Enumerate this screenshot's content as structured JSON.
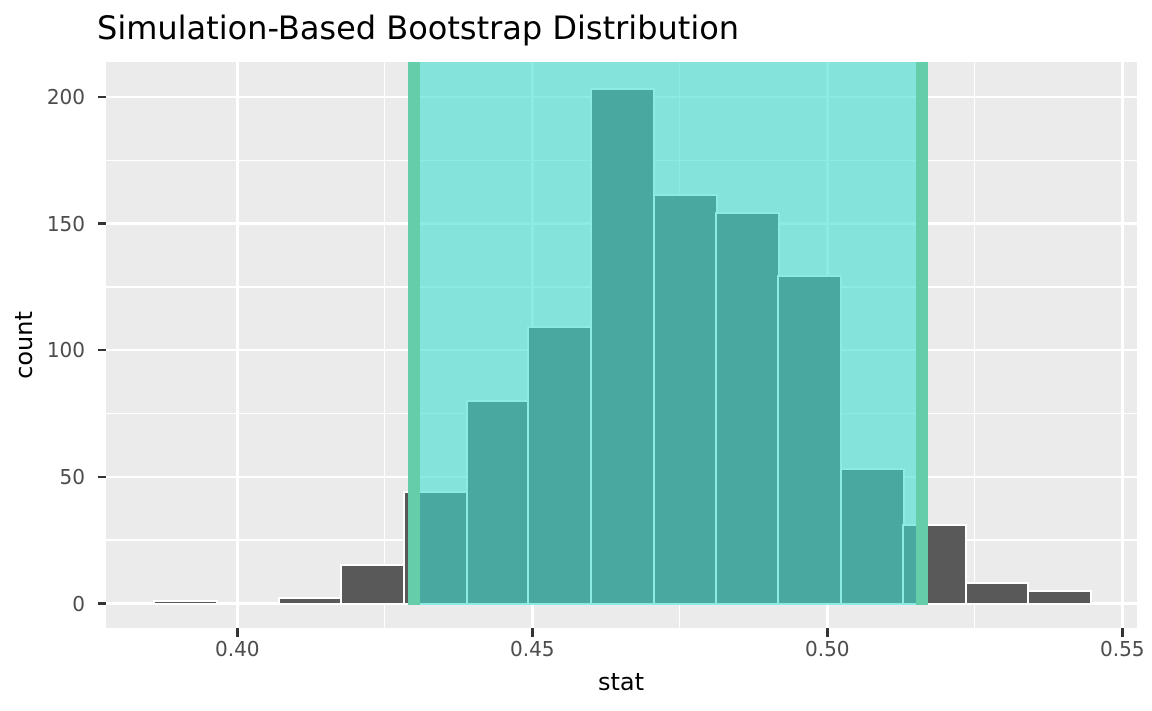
{
  "title": "Simulation-Based Bootstrap Distribution",
  "chart_data": {
    "type": "bar",
    "subtype": "histogram",
    "title": "Simulation-Based Bootstrap Distribution",
    "xlabel": "stat",
    "ylabel": "count",
    "x_ticks": [
      0.4,
      0.45,
      0.5,
      0.55
    ],
    "x_tick_labels": [
      "0.40",
      "0.45",
      "0.50",
      "0.55"
    ],
    "x_minor_gridlines": [
      0.425,
      0.475,
      0.525
    ],
    "y_ticks": [
      0,
      50,
      100,
      150,
      200
    ],
    "y_tick_labels": [
      "0",
      "50",
      "100",
      "150",
      "200"
    ],
    "y_minor_gridlines": [
      25,
      75,
      125,
      175
    ],
    "xlim": [
      0.378,
      0.5525
    ],
    "ylim": [
      0,
      213
    ],
    "grid": "on",
    "legend": "none",
    "bin_width": 0.0106,
    "bin_edges": [
      0.386,
      0.3965,
      0.4071,
      0.4177,
      0.4283,
      0.4389,
      0.4494,
      0.46,
      0.4706,
      0.4812,
      0.4917,
      0.5023,
      0.5129,
      0.5235,
      0.534,
      0.5446
    ],
    "counts": [
      1,
      0,
      2,
      15,
      44,
      80,
      109,
      203,
      161,
      154,
      129,
      53,
      31,
      8,
      5
    ],
    "confidence_interval": {
      "lower": 0.43,
      "upper": 0.516
    },
    "colors": {
      "panel_background": "#EBEBEB",
      "gridline": "#FFFFFF",
      "bar_fill": "#595959",
      "bar_stroke": "#FFFFFF",
      "ci_shade_fill": "rgba(64,224,208,0.6)",
      "ci_shade_apparent": "#84E2DB",
      "ci_line": "#66CDAA",
      "tick_label": "#4D4D4D",
      "axis_title": "#000000",
      "title": "#000000"
    }
  }
}
